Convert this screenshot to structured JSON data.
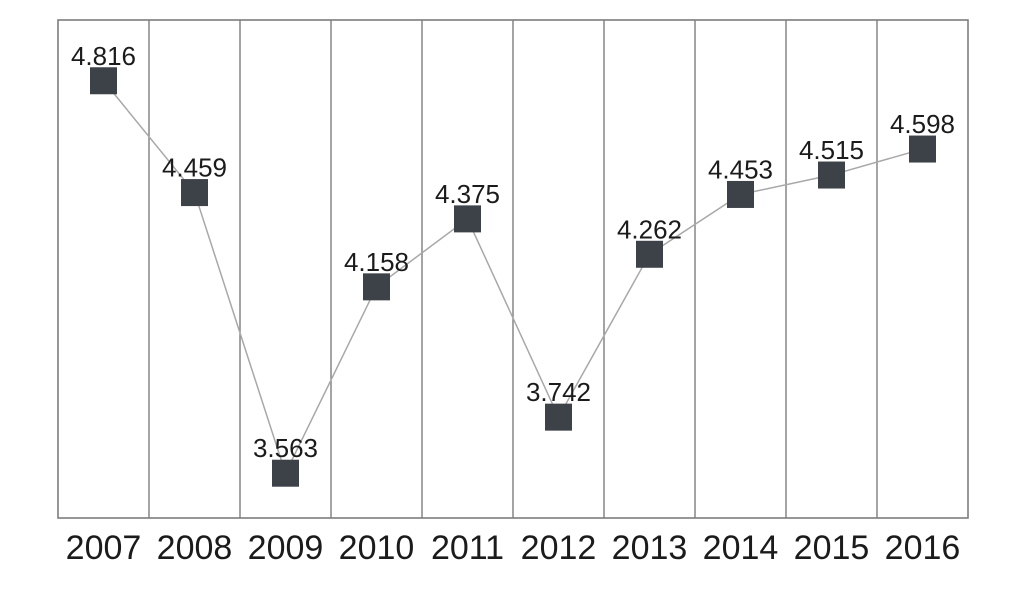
{
  "chart_data": {
    "type": "line",
    "title": "",
    "xlabel": "",
    "ylabel": "",
    "categories": [
      "2007",
      "2008",
      "2009",
      "2010",
      "2011",
      "2012",
      "2013",
      "2014",
      "2015",
      "2016"
    ],
    "values": [
      4.816,
      4.459,
      3.563,
      4.158,
      4.375,
      3.742,
      4.262,
      4.453,
      4.515,
      4.598
    ],
    "data_labels": [
      "4.816",
      "4.459",
      "3.563",
      "4.158",
      "4.375",
      "3.742",
      "4.262",
      "4.453",
      "4.515",
      "4.598"
    ],
    "ylim": [
      3.42,
      5.01
    ],
    "grid": "vertical",
    "legend": "none",
    "marker_shape": "square",
    "colors": {
      "background": "#ffffff",
      "marker": "#3d4249",
      "line": "#a8a8a8",
      "grid": "#7d7d7d",
      "label_text": "#1b1b1b"
    }
  }
}
